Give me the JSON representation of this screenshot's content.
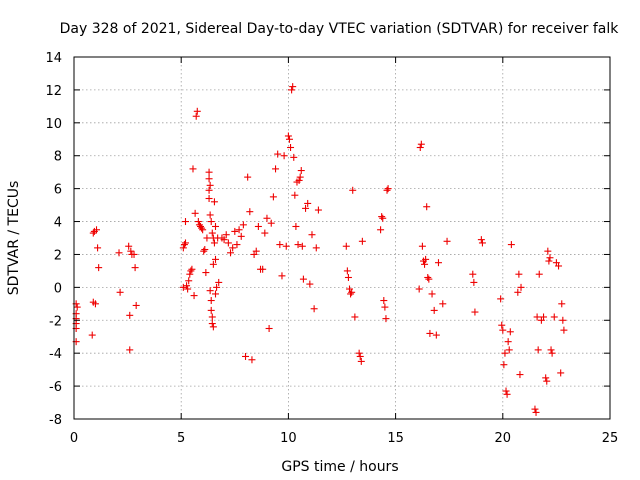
{
  "chart_data": {
    "type": "scatter",
    "title": "Day 328 of 2021, Sidereal Day-to-day VTEC variation (SDTVAR) for receiver falk",
    "xlabel": "GPS time / hours",
    "ylabel": "SDTVAR / TECUs",
    "xlim": [
      0,
      25
    ],
    "ylim": [
      -8,
      14
    ],
    "xticks": [
      0,
      5,
      10,
      15,
      20,
      25
    ],
    "yticks": [
      -8,
      -6,
      -4,
      -2,
      0,
      2,
      4,
      6,
      8,
      10,
      12,
      14
    ],
    "grid": true,
    "marker": "plus",
    "color": "#ee0000",
    "series": [
      {
        "name": "SDTVAR",
        "x": [
          0.1,
          0.1,
          0.1,
          0.1,
          0.1,
          0.1,
          0.15,
          0.85,
          0.9,
          0.9,
          0.95,
          1.0,
          1.05,
          1.1,
          1.15,
          2.1,
          2.15,
          2.55,
          2.6,
          2.6,
          2.65,
          2.7,
          2.8,
          2.85,
          2.9,
          5.1,
          5.1,
          5.15,
          5.2,
          5.2,
          5.25,
          5.3,
          5.35,
          5.4,
          5.45,
          5.5,
          5.55,
          5.6,
          5.65,
          5.7,
          5.75,
          5.8,
          5.85,
          5.9,
          5.95,
          6.0,
          6.05,
          6.1,
          6.15,
          6.2,
          6.3,
          6.3,
          6.3,
          6.3,
          6.35,
          6.35,
          6.35,
          6.4,
          6.4,
          6.4,
          6.45,
          6.45,
          6.45,
          6.5,
          6.5,
          6.5,
          6.55,
          6.55,
          6.6,
          6.6,
          6.6,
          6.65,
          6.7,
          6.75,
          6.9,
          7.0,
          7.1,
          7.2,
          7.3,
          7.4,
          7.5,
          7.6,
          7.7,
          7.8,
          7.9,
          8.0,
          8.1,
          8.2,
          8.3,
          8.4,
          8.5,
          8.6,
          8.7,
          8.8,
          8.9,
          9.0,
          9.1,
          9.2,
          9.3,
          9.4,
          9.5,
          9.6,
          9.7,
          9.8,
          9.9,
          10.0,
          10.05,
          10.1,
          10.15,
          10.2,
          10.25,
          10.3,
          10.35,
          10.4,
          10.45,
          10.5,
          10.55,
          10.6,
          10.65,
          10.7,
          10.8,
          10.9,
          11.0,
          11.1,
          11.2,
          11.3,
          11.4,
          12.7,
          12.75,
          12.8,
          12.85,
          12.9,
          12.95,
          13.0,
          13.1,
          13.3,
          13.35,
          13.4,
          13.45,
          14.3,
          14.35,
          14.4,
          14.45,
          14.5,
          14.55,
          14.6,
          14.65,
          16.1,
          16.15,
          16.2,
          16.25,
          16.3,
          16.35,
          16.4,
          16.45,
          16.5,
          16.55,
          16.6,
          16.7,
          16.8,
          16.9,
          17.0,
          17.2,
          17.4,
          18.6,
          18.65,
          18.7,
          19.0,
          19.05,
          19.9,
          19.95,
          20.0,
          20.05,
          20.1,
          20.15,
          20.2,
          20.25,
          20.3,
          20.35,
          20.4,
          20.7,
          20.75,
          20.8,
          20.85,
          21.5,
          21.55,
          21.6,
          21.65,
          21.7,
          21.8,
          21.9,
          22.0,
          22.05,
          22.1,
          22.15,
          22.2,
          22.25,
          22.3,
          22.4,
          22.5,
          22.6,
          22.7,
          22.75,
          22.8,
          22.85
        ],
        "y": [
          -1.0,
          -1.6,
          -2.2,
          -3.3,
          -1.9,
          -2.5,
          -1.2,
          -2.9,
          3.3,
          -0.9,
          3.4,
          -1.0,
          3.5,
          2.4,
          1.2,
          2.1,
          -0.3,
          2.5,
          -1.7,
          -3.8,
          2.2,
          2.0,
          2.0,
          1.2,
          -1.1,
          0.0,
          2.4,
          2.6,
          4.0,
          2.7,
          0.1,
          -0.1,
          0.4,
          0.8,
          1.0,
          1.1,
          7.2,
          -0.5,
          4.5,
          10.4,
          10.7,
          4.0,
          3.8,
          3.7,
          3.6,
          3.5,
          2.2,
          2.3,
          0.9,
          3.0,
          7.0,
          6.6,
          5.9,
          5.4,
          6.2,
          4.4,
          -0.2,
          4.0,
          -0.8,
          -1.4,
          3.3,
          -1.8,
          -2.2,
          3.0,
          -2.4,
          1.4,
          5.2,
          2.7,
          3.7,
          -0.4,
          1.7,
          0.0,
          3.0,
          0.3,
          3.0,
          2.9,
          3.2,
          2.7,
          2.1,
          2.4,
          3.4,
          2.6,
          3.5,
          3.1,
          3.8,
          -4.2,
          6.7,
          4.6,
          -4.4,
          2.0,
          2.2,
          3.7,
          1.1,
          1.1,
          3.3,
          4.2,
          -2.5,
          3.9,
          5.5,
          7.2,
          8.1,
          2.6,
          0.7,
          8.0,
          2.5,
          9.2,
          9.0,
          8.5,
          12.0,
          12.2,
          7.9,
          5.6,
          3.7,
          6.4,
          2.6,
          6.5,
          6.7,
          7.1,
          2.5,
          0.5,
          4.8,
          5.1,
          0.2,
          3.2,
          -1.3,
          2.4,
          4.7,
          2.5,
          1.0,
          0.6,
          -0.1,
          -0.4,
          -0.3,
          5.9,
          -1.8,
          -4.0,
          -4.2,
          -4.5,
          2.8,
          3.5,
          4.3,
          4.2,
          -0.8,
          -1.2,
          -1.9,
          5.9,
          6.0,
          -0.1,
          8.5,
          8.7,
          2.5,
          1.6,
          1.4,
          1.7,
          4.9,
          0.6,
          0.5,
          -2.8,
          -0.4,
          -1.4,
          -2.9,
          1.5,
          -1.0,
          2.8,
          0.8,
          0.3,
          -1.5,
          2.9,
          2.7,
          -0.7,
          -2.3,
          -2.6,
          -4.7,
          -4.0,
          -6.3,
          -6.5,
          -3.3,
          -3.8,
          -2.7,
          2.6,
          -0.3,
          0.8,
          -5.3,
          0.0,
          -7.4,
          -7.6,
          -1.8,
          -3.8,
          0.8,
          -2.0,
          -1.8,
          -5.5,
          -5.7,
          2.2,
          1.6,
          1.8,
          -3.8,
          -4.0,
          -1.8,
          1.5,
          1.3,
          -5.2,
          -1.0,
          -2.0,
          -2.6
        ]
      }
    ]
  }
}
